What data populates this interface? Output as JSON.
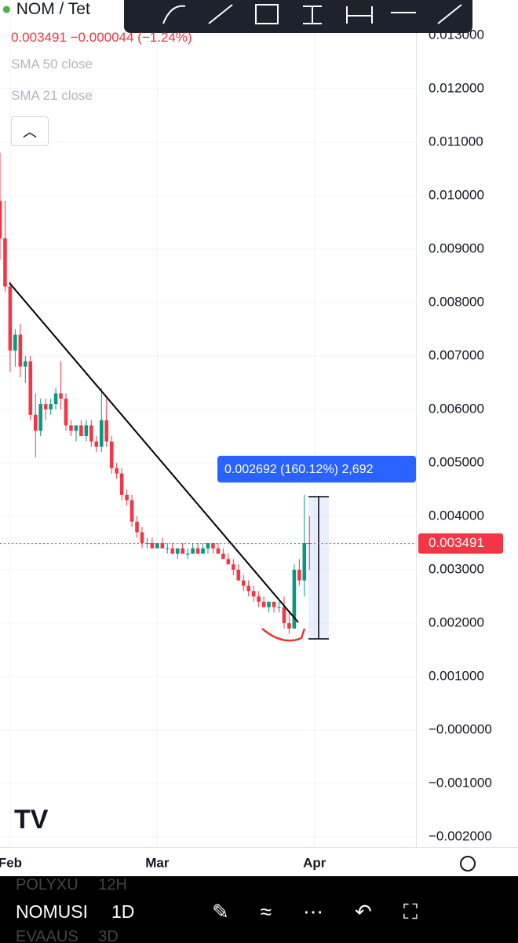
{
  "header": {
    "symbol": "NOM / Tet",
    "quote": "0.003491 −0.000044 (−1.24%)",
    "indicators": [
      "SMA 50 close",
      "SMA 21 close"
    ]
  },
  "chart_data": {
    "type": "candlestick",
    "x": [
      -2,
      -1,
      0,
      1,
      2,
      3,
      4,
      5,
      6,
      7,
      8,
      9,
      10,
      11,
      12,
      13,
      14,
      15,
      16,
      17,
      18,
      19,
      20,
      21,
      22,
      23,
      24,
      25,
      26,
      27,
      28,
      29,
      30,
      31,
      32,
      33,
      34,
      35,
      36,
      37,
      38,
      39,
      40,
      41,
      42,
      43,
      44,
      45,
      46,
      47,
      48,
      49,
      50,
      51,
      52,
      53,
      54,
      55,
      56,
      57,
      58,
      59
    ],
    "open": [
      0.0099,
      0.0092,
      0.0083,
      0.0071,
      0.0074,
      0.0068,
      0.0069,
      0.0059,
      0.0056,
      0.0061,
      0.006,
      0.0061,
      0.0063,
      0.0062,
      0.0057,
      0.0056,
      0.0057,
      0.0055,
      0.0057,
      0.0054,
      0.0053,
      0.0058,
      0.0054,
      0.0049,
      0.0048,
      0.0044,
      0.0043,
      0.0039,
      0.0037,
      0.0035,
      0.0035,
      0.0034,
      0.0035,
      0.0034,
      0.0034,
      0.0033,
      0.0034,
      0.0033,
      0.0033,
      0.0034,
      0.0033,
      0.0034,
      0.0035,
      0.0034,
      0.0033,
      0.0032,
      0.0031,
      0.003,
      0.0028,
      0.0027,
      0.0026,
      0.0025,
      0.0024,
      0.0023,
      0.0024,
      0.0023,
      0.0023,
      0.002,
      0.0019,
      0.003,
      0.0028,
      0.0035
    ],
    "high": [
      0.0108,
      0.0099,
      0.0084,
      0.0075,
      0.0076,
      0.007,
      0.007,
      0.0063,
      0.0062,
      0.0062,
      0.0062,
      0.0064,
      0.0069,
      0.0063,
      0.0058,
      0.0057,
      0.0058,
      0.0058,
      0.0058,
      0.0055,
      0.0064,
      0.0062,
      0.0055,
      0.005,
      0.0049,
      0.0045,
      0.0044,
      0.004,
      0.0038,
      0.0036,
      0.0036,
      0.0035,
      0.0036,
      0.0035,
      0.0035,
      0.0034,
      0.0035,
      0.0034,
      0.0035,
      0.0035,
      0.0035,
      0.0035,
      0.0035,
      0.0035,
      0.0034,
      0.0033,
      0.0032,
      0.0031,
      0.0029,
      0.0028,
      0.0027,
      0.0026,
      0.0025,
      0.0024,
      0.0024,
      0.0024,
      0.0025,
      0.0022,
      0.0031,
      0.0032,
      0.0044,
      0.004
    ],
    "low": [
      0.0088,
      0.0082,
      0.0067,
      0.0068,
      0.0066,
      0.0065,
      0.0058,
      0.0051,
      0.0055,
      0.0058,
      0.0059,
      0.006,
      0.006,
      0.0056,
      0.0055,
      0.0054,
      0.0055,
      0.0054,
      0.0053,
      0.0052,
      0.0052,
      0.0053,
      0.0048,
      0.0047,
      0.0043,
      0.0042,
      0.0038,
      0.0036,
      0.0034,
      0.0034,
      0.0034,
      0.0034,
      0.0034,
      0.0033,
      0.0033,
      0.0032,
      0.0033,
      0.0032,
      0.0033,
      0.0033,
      0.0033,
      0.0033,
      0.0033,
      0.0033,
      0.0032,
      0.0031,
      0.0029,
      0.0028,
      0.0026,
      0.0025,
      0.0024,
      0.0023,
      0.0023,
      0.0022,
      0.0022,
      0.0022,
      0.0019,
      0.0018,
      0.0019,
      0.0027,
      0.0025,
      0.003
    ],
    "close": [
      0.0092,
      0.0083,
      0.0071,
      0.0074,
      0.0068,
      0.0069,
      0.0059,
      0.0056,
      0.0061,
      0.006,
      0.0061,
      0.0063,
      0.0062,
      0.0057,
      0.0056,
      0.0057,
      0.0055,
      0.0057,
      0.0054,
      0.0053,
      0.0058,
      0.0054,
      0.0049,
      0.0048,
      0.0044,
      0.0043,
      0.0039,
      0.0037,
      0.0035,
      0.0035,
      0.0034,
      0.0035,
      0.0034,
      0.0034,
      0.0033,
      0.0034,
      0.0033,
      0.0033,
      0.0034,
      0.0033,
      0.0034,
      0.0035,
      0.0034,
      0.0033,
      0.0032,
      0.0031,
      0.003,
      0.0028,
      0.0027,
      0.0026,
      0.0025,
      0.0024,
      0.0023,
      0.0024,
      0.0023,
      0.0023,
      0.002,
      0.0019,
      0.003,
      0.0028,
      0.0035,
      0.003491
    ],
    "up_color": "#089981",
    "down_color": "#f23645",
    "xlim": [
      -2,
      80
    ],
    "xticks": [
      {
        "value": 0,
        "label": "Feb"
      },
      {
        "value": 29,
        "label": "Mar"
      },
      {
        "value": 60,
        "label": "Apr"
      }
    ],
    "ylim": [
      -0.00219,
      0.01366
    ],
    "yticks": [
      {
        "value": 0.013,
        "label": "0.013000"
      },
      {
        "value": 0.012,
        "label": "0.012000"
      },
      {
        "value": 0.011,
        "label": "0.011000"
      },
      {
        "value": 0.01,
        "label": "0.010000"
      },
      {
        "value": 0.009,
        "label": "0.009000"
      },
      {
        "value": 0.008,
        "label": "0.008000"
      },
      {
        "value": 0.007,
        "label": "0.007000"
      },
      {
        "value": 0.006,
        "label": "0.006000"
      },
      {
        "value": 0.005,
        "label": "0.005000"
      },
      {
        "value": 0.004,
        "label": "0.004000"
      },
      {
        "value": 0.003,
        "label": "0.003000"
      },
      {
        "value": 0.002,
        "label": "0.002000"
      },
      {
        "value": 0.001,
        "label": "0.001000"
      },
      {
        "value": 0,
        "label": "−0.000000"
      },
      {
        "value": -0.001,
        "label": "−0.001000"
      },
      {
        "value": -0.002,
        "label": "−0.002000"
      }
    ],
    "last_price": {
      "value": 0.003491,
      "label": "0.003491"
    },
    "measure_label": "0.002692 (160.12%) 2,692",
    "grid": true
  },
  "footer": {
    "rows": [
      [
        "POLYXU",
        "12H"
      ],
      [
        "NOMUSI",
        "1D"
      ],
      [
        "EVAAUS",
        "3D"
      ]
    ]
  }
}
